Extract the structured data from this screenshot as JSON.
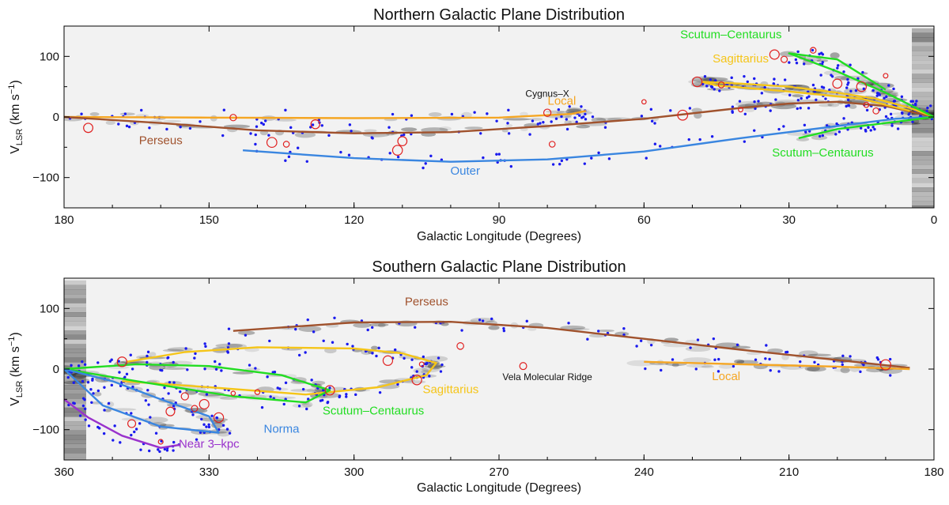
{
  "chart_data": [
    {
      "type": "scatter",
      "title": "Northern Galactic Plane Distribution",
      "xlabel": "Galactic Longitude (Degrees)",
      "ylabel_main": "V",
      "ylabel_sub": "LSR",
      "ylabel_unit": " (km s",
      "ylabel_exp": "−1",
      "ylabel_close": ")",
      "xlim": [
        180,
        0
      ],
      "ylim": [
        -150,
        150
      ],
      "xticks": [
        180,
        150,
        120,
        90,
        60,
        30,
        0
      ],
      "yticks": [
        100,
        0,
        -100
      ],
      "ytick_labels": [
        "100",
        "0",
        "−100"
      ],
      "arms": [
        {
          "name": "Local",
          "color": "#f5a623",
          "points": [
            [
              180,
              0
            ],
            [
              150,
              -1
            ],
            [
              120,
              -2
            ],
            [
              90,
              -1
            ],
            [
              75,
              5
            ],
            [
              72,
              10
            ]
          ]
        },
        {
          "name": "Perseus",
          "color": "#a0522d",
          "points": [
            [
              180,
              0
            ],
            [
              160,
              -10
            ],
            [
              140,
              -22
            ],
            [
              120,
              -27
            ],
            [
              100,
              -25
            ],
            [
              80,
              -15
            ],
            [
              60,
              -3
            ],
            [
              40,
              15
            ],
            [
              30,
              22
            ],
            [
              20,
              25
            ],
            [
              10,
              18
            ],
            [
              0,
              0
            ]
          ]
        },
        {
          "name": "Outer",
          "color": "#3a86e0",
          "points": [
            [
              143,
              -55
            ],
            [
              120,
              -68
            ],
            [
              100,
              -74
            ],
            [
              80,
              -70
            ],
            [
              60,
              -57
            ],
            [
              40,
              -35
            ],
            [
              20,
              -15
            ],
            [
              8,
              -3
            ],
            [
              0,
              0
            ]
          ]
        },
        {
          "name": "Sagittarius",
          "color": "#f5c518",
          "points": [
            [
              0,
              0
            ],
            [
              5,
              15
            ],
            [
              12,
              30
            ],
            [
              20,
              40
            ],
            [
              30,
              50
            ],
            [
              40,
              55
            ],
            [
              48,
              58
            ],
            [
              45,
              52
            ],
            [
              30,
              42
            ],
            [
              15,
              30
            ],
            [
              5,
              10
            ]
          ]
        },
        {
          "name": "Scutum–Centaurus",
          "color": "#22dd22",
          "points": [
            [
              0,
              0
            ],
            [
              10,
              40
            ],
            [
              20,
              75
            ],
            [
              30,
              105
            ],
            [
              20,
              95
            ],
            [
              10,
              45
            ]
          ]
        },
        {
          "name": "Scutum–Centaurus (far)",
          "color": "#22dd22",
          "points": [
            [
              0,
              0
            ],
            [
              10,
              -10
            ],
            [
              20,
              -20
            ],
            [
              28,
              -35
            ]
          ]
        }
      ],
      "arm_labels": [
        {
          "text": "Local",
          "color": "#f5a623",
          "x": 77,
          "y": 20
        },
        {
          "text": "Perseus",
          "color": "#a0522d",
          "x": 160,
          "y": -45
        },
        {
          "text": "Outer",
          "color": "#3a86e0",
          "x": 97,
          "y": -95
        },
        {
          "text": "Sagittarius",
          "color": "#f5c518",
          "x": 40,
          "y": 90
        },
        {
          "text": "Scutum–Centaurus",
          "color": "#22dd22",
          "x": 42,
          "y": 130
        },
        {
          "text": "Scutum–Centaurus",
          "color": "#22dd22",
          "x": 23,
          "y": -65
        },
        {
          "text": "Cygnus–X",
          "color": "#111111",
          "x": 80,
          "y": 33
        }
      ],
      "red_sources": [
        [
          175,
          -18
        ],
        [
          128,
          -12
        ],
        [
          137,
          -42
        ],
        [
          134,
          -45
        ],
        [
          111,
          -55
        ],
        [
          110,
          -40
        ],
        [
          80,
          7
        ],
        [
          79,
          -45
        ],
        [
          60,
          25
        ],
        [
          49,
          58
        ],
        [
          44,
          53
        ],
        [
          40,
          12
        ],
        [
          33,
          103
        ],
        [
          31,
          95
        ],
        [
          25,
          110
        ],
        [
          20,
          55
        ],
        [
          15,
          50
        ],
        [
          10,
          68
        ],
        [
          14,
          20
        ],
        [
          12,
          10
        ],
        [
          52,
          3
        ],
        [
          145,
          -1
        ]
      ]
    },
    {
      "type": "scatter",
      "title": "Southern Galactic Plane Distribution",
      "xlabel": "Galactic Longitude (Degrees)",
      "ylabel_main": "V",
      "ylabel_sub": "LSR",
      "ylabel_unit": " (km s",
      "ylabel_exp": "−1",
      "ylabel_close": ")",
      "xlim": [
        360,
        180
      ],
      "ylim": [
        -150,
        150
      ],
      "xticks": [
        360,
        330,
        300,
        270,
        240,
        210,
        180
      ],
      "yticks": [
        100,
        0,
        -100
      ],
      "ytick_labels": [
        "100",
        "0",
        "−100"
      ],
      "arms": [
        {
          "name": "Perseus",
          "color": "#a0522d",
          "points": [
            [
              325,
              63
            ],
            [
              300,
              77
            ],
            [
              280,
              78
            ],
            [
              260,
              68
            ],
            [
              240,
              50
            ],
            [
              220,
              32
            ],
            [
              200,
              15
            ],
            [
              185,
              2
            ]
          ]
        },
        {
          "name": "Local",
          "color": "#f5a623",
          "points": [
            [
              240,
              12
            ],
            [
              220,
              8
            ],
            [
              200,
              4
            ],
            [
              185,
              0
            ]
          ]
        },
        {
          "name": "Sagittarius",
          "color": "#f5c518",
          "points": [
            [
              347,
              12
            ],
            [
              335,
              28
            ],
            [
              320,
              36
            ],
            [
              300,
              34
            ],
            [
              290,
              26
            ],
            [
              283,
              10
            ],
            [
              285,
              -10
            ],
            [
              295,
              -30
            ],
            [
              310,
              -42
            ],
            [
              330,
              -30
            ],
            [
              348,
              -20
            ]
          ]
        },
        {
          "name": "Scutum–Centaurus",
          "color": "#22dd22",
          "points": [
            [
              360,
              0
            ],
            [
              345,
              8
            ],
            [
              330,
              5
            ],
            [
              315,
              -10
            ],
            [
              305,
              -35
            ],
            [
              310,
              -55
            ],
            [
              325,
              -45
            ],
            [
              345,
              -20
            ],
            [
              360,
              0
            ]
          ]
        },
        {
          "name": "Norma",
          "color": "#3a86e0",
          "points": [
            [
              360,
              0
            ],
            [
              350,
              -20
            ],
            [
              340,
              -50
            ],
            [
              330,
              -78
            ],
            [
              328,
              -105
            ],
            [
              340,
              -95
            ],
            [
              352,
              -60
            ],
            [
              360,
              0
            ]
          ]
        },
        {
          "name": "Near 3-kpc",
          "color": "#9932cc",
          "points": [
            [
              360,
              -50
            ],
            [
              355,
              -80
            ],
            [
              348,
              -110
            ],
            [
              340,
              -130
            ],
            [
              336,
              -125
            ]
          ]
        }
      ],
      "arm_labels": [
        {
          "text": "Perseus",
          "color": "#a0522d",
          "x": 285,
          "y": 105
        },
        {
          "text": "Local",
          "color": "#f5a623",
          "x": 223,
          "y": -18
        },
        {
          "text": "Sagittarius",
          "color": "#f5c518",
          "x": 280,
          "y": -40
        },
        {
          "text": "Scutum–Centaurus",
          "color": "#22dd22",
          "x": 296,
          "y": -75
        },
        {
          "text": "Norma",
          "color": "#3a86e0",
          "x": 315,
          "y": -105
        },
        {
          "text": "Near 3–kpc",
          "color": "#9932cc",
          "x": 330,
          "y": -130
        },
        {
          "text": "Vela Molecular Ridge",
          "color": "#111111",
          "x": 260,
          "y": -18
        }
      ],
      "red_sources": [
        [
          348,
          12
        ],
        [
          346,
          -90
        ],
        [
          338,
          -70
        ],
        [
          335,
          -45
        ],
        [
          331,
          -58
        ],
        [
          328,
          -80
        ],
        [
          325,
          -40
        ],
        [
          320,
          -38
        ],
        [
          305,
          -35
        ],
        [
          293,
          14
        ],
        [
          287,
          -18
        ],
        [
          286,
          8
        ],
        [
          278,
          38
        ],
        [
          265,
          5
        ],
        [
          190,
          7
        ],
        [
          340,
          -120
        ],
        [
          333,
          -65
        ]
      ]
    }
  ]
}
